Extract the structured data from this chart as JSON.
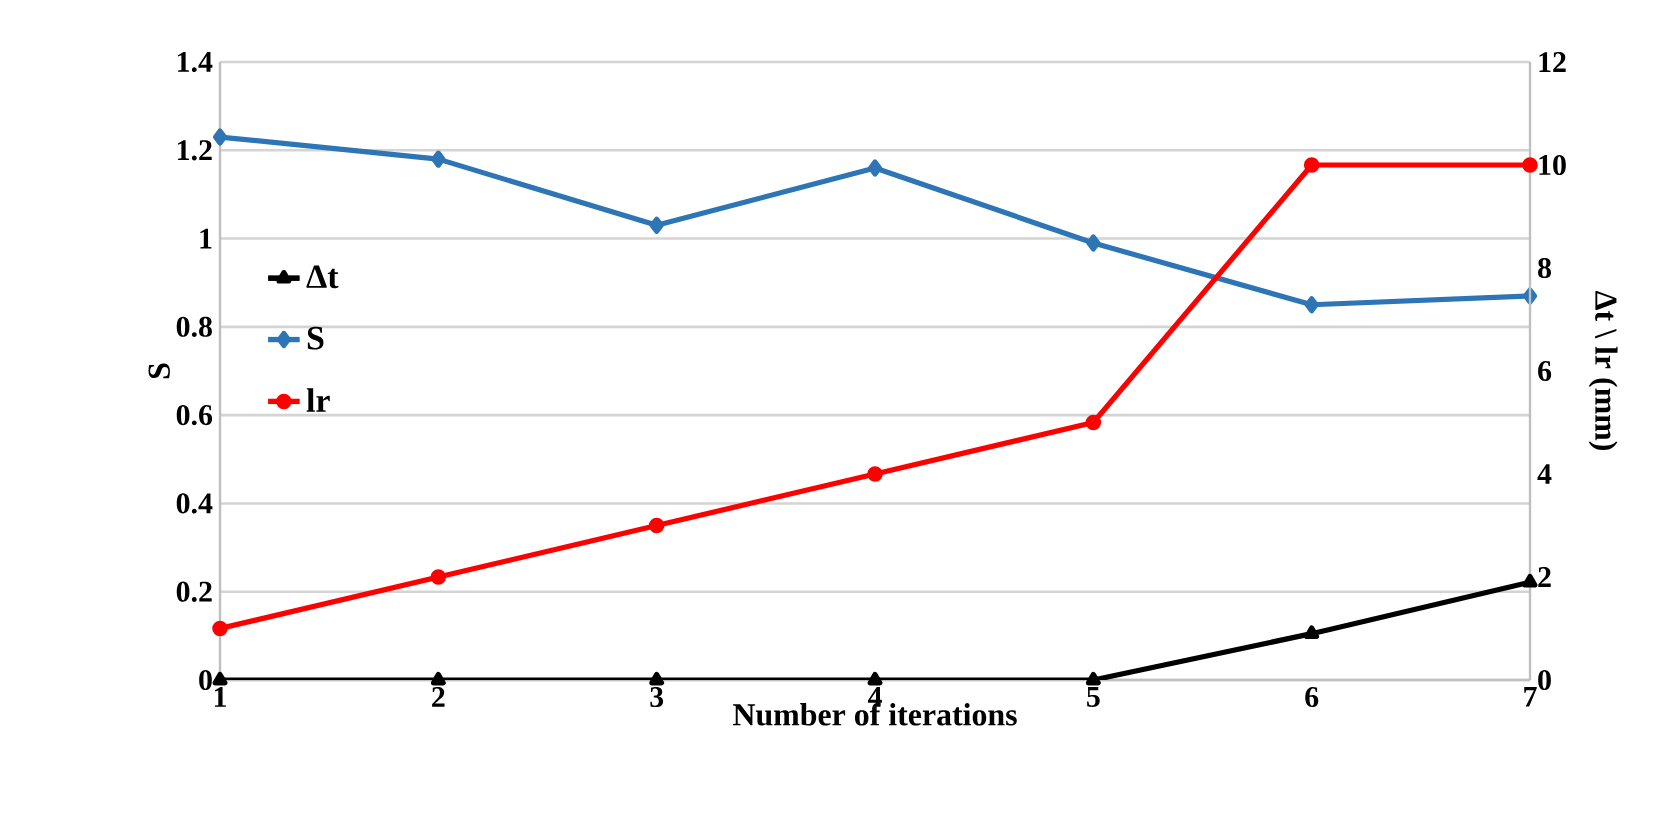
{
  "chart_data": {
    "type": "line",
    "xlabel": "Number of iterations",
    "ylabel": "S",
    "y2label": "Δt \\ lr (mm)",
    "x": [
      1,
      2,
      3,
      4,
      5,
      6,
      7
    ],
    "series": [
      {
        "name": "Δt",
        "color": "#000000",
        "marker": "triangle",
        "axis": "y2",
        "values": [
          0,
          0,
          0,
          0,
          0,
          0.9,
          1.9
        ]
      },
      {
        "name": "S",
        "color": "#2e75b6",
        "marker": "diamond",
        "values": [
          1.23,
          1.18,
          1.03,
          1.16,
          0.99,
          0.85,
          0.87
        ]
      },
      {
        "name": "lr",
        "color": "#ff0000",
        "marker": "circle",
        "axis": "y2",
        "values": [
          1,
          2,
          3,
          4,
          5,
          10,
          10
        ]
      }
    ],
    "xlim": [
      1,
      7
    ],
    "xticks": [
      1,
      2,
      3,
      4,
      5,
      6,
      7
    ],
    "ylim": [
      0,
      1.4
    ],
    "yticks": [
      0,
      0.2,
      0.4,
      0.6,
      0.8,
      1,
      1.2,
      1.4
    ],
    "y2lim": [
      0,
      12
    ],
    "y2ticks": [
      0,
      2,
      4,
      6,
      8,
      10,
      12
    ],
    "grid": "y",
    "legend": "left"
  }
}
